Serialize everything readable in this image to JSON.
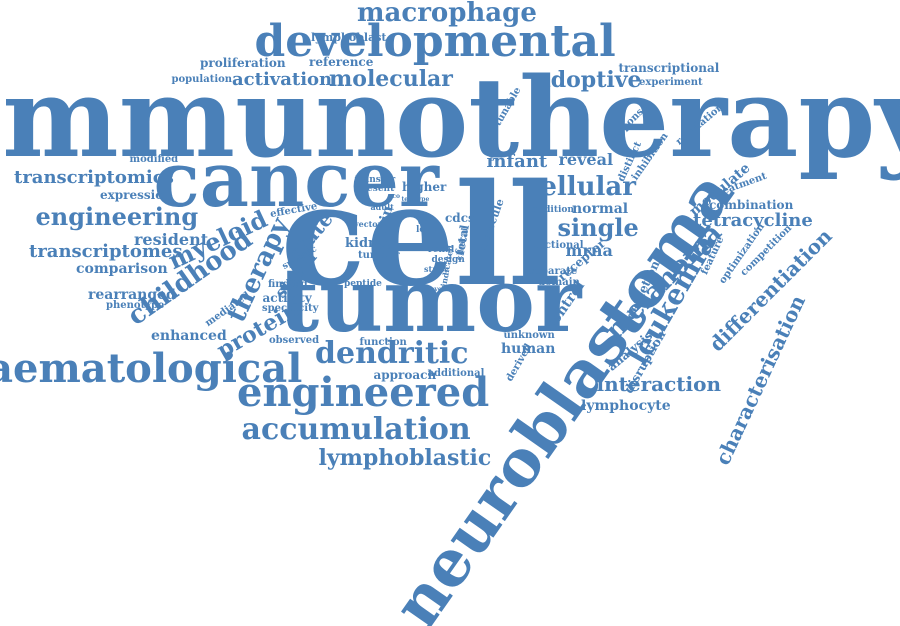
{
  "palette": {
    "word_color": "#4a80b8",
    "background": "#ffffff"
  },
  "words": [
    "immunotherapy",
    "cell",
    "neuroblastoma",
    "tumor",
    "cancer",
    "developmental",
    "haematological",
    "engineered",
    "accumulation",
    "dendritic",
    "macrophage",
    "lymphoblastic",
    "leukemia",
    "melanoma",
    "childhood",
    "characterisation",
    "differentiation",
    "engineering",
    "cellular",
    "therapy",
    "myeloid",
    "molecular",
    "adoptive",
    "activation",
    "protein",
    "single",
    "interaction",
    "transcriptomics",
    "transcriptomes",
    "tetracycline",
    "infant",
    "reveal",
    "state",
    "resident",
    "signal",
    "comparison",
    "rearranged",
    "enhanced",
    "mrna",
    "normal",
    "lymphocyte",
    "human",
    "control",
    "modulate",
    "kidney",
    "origin",
    "lymphoblast",
    "proliferation",
    "reference",
    "transcriptional",
    "population",
    "experiment",
    "expression",
    "modified",
    "regulation",
    "combination",
    "approach",
    "additional",
    "function",
    "unknown",
    "analysis",
    "disruption",
    "depletion",
    "receptor",
    "functional",
    "separate",
    "domain",
    "derived",
    "peptide",
    "activity",
    "specificity",
    "finding",
    "mediated",
    "phenotype",
    "observed",
    "tumour",
    "renal",
    "fetal",
    "design",
    "level",
    "study",
    "higher",
    "transfer",
    "present",
    "vector",
    "adult",
    "effective",
    "specific",
    "cdcs",
    "molecule",
    "addition",
    "tunable",
    "response",
    "distinct",
    "inhibition",
    "feature",
    "optimization",
    "competition",
    "treatment",
    "clinical",
    "work",
    "test",
    "type",
    "novel",
    "indicated",
    "eco",
    "b"
  ]
}
